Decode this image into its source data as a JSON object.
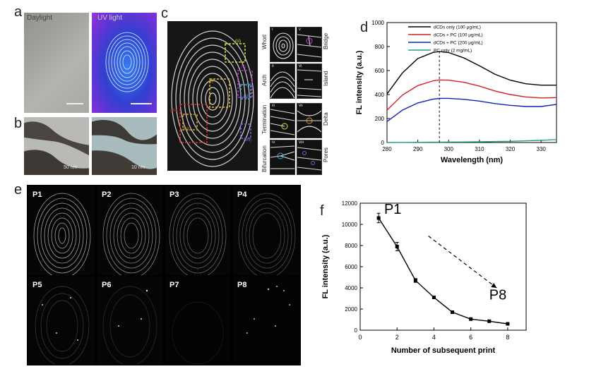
{
  "panels": {
    "a": "a",
    "b": "b",
    "c": "c",
    "d": "d",
    "e": "e",
    "f": "f"
  },
  "panel_a": {
    "left_label": "Daylight",
    "right_label": "UV light"
  },
  "panel_b": {
    "scale_left": "50 nm",
    "scale_right": "10 nm"
  },
  "panel_c": {
    "features_left": [
      "Whorl",
      "Arch",
      "Termination",
      "Bifurcation"
    ],
    "features_right": [
      "Bridge",
      "Island",
      "Delta",
      "Pores"
    ],
    "roman_left": [
      "i",
      "ii",
      "iii",
      "iv"
    ],
    "roman_right": [
      "v",
      "vi",
      "vii",
      "viii"
    ],
    "box_tags": [
      "(iii)",
      "(i)",
      "(ii)",
      "(vii)",
      "(v)",
      "(vi)",
      "(iv)",
      "(viii)"
    ]
  },
  "panel_e": {
    "labels": [
      "P1",
      "P2",
      "P3",
      "P4",
      "P5",
      "P6",
      "P7",
      "P8"
    ]
  },
  "chart_data": [
    {
      "id": "d",
      "type": "line",
      "xlabel": "Wavelength (nm)",
      "ylabel": "FL intensity (a.u.)",
      "xlim": [
        280,
        335
      ],
      "ylim": [
        0,
        1000
      ],
      "xticks": [
        280,
        290,
        300,
        310,
        320,
        330
      ],
      "yticks": [
        0,
        200,
        400,
        600,
        800,
        1000
      ],
      "x": [
        280,
        285,
        290,
        295,
        297,
        300,
        305,
        310,
        315,
        320,
        325,
        330,
        335
      ],
      "series": [
        {
          "name": "dCDs only (100 μg/mL)",
          "color": "#000000",
          "values": [
            405,
            580,
            700,
            752,
            758,
            750,
            705,
            640,
            570,
            520,
            490,
            478,
            478
          ]
        },
        {
          "name": "dCDs + PC (100 μg/mL)",
          "color": "#d42020",
          "values": [
            270,
            395,
            475,
            515,
            522,
            520,
            502,
            470,
            430,
            400,
            380,
            372,
            375
          ]
        },
        {
          "name": "dCDs + PC (200 μg/mL)",
          "color": "#1020c0",
          "values": [
            175,
            270,
            330,
            362,
            368,
            368,
            360,
            345,
            325,
            310,
            300,
            300,
            318
          ]
        },
        {
          "name": "PC only (2 mg/mL)",
          "color": "#20a080",
          "values": [
            0,
            1,
            2,
            3,
            3,
            4,
            5,
            6,
            8,
            10,
            14,
            18,
            25
          ]
        }
      ],
      "vline": 297,
      "legend": "top-center",
      "grid": false
    },
    {
      "id": "f",
      "type": "line",
      "xlabel": "Number of subsequent print",
      "ylabel": "FL intensity (a.u.)",
      "xlim": [
        0,
        9
      ],
      "ylim": [
        0,
        12000
      ],
      "xticks": [
        0,
        2,
        4,
        6,
        8
      ],
      "yticks": [
        0,
        2000,
        4000,
        6000,
        8000,
        10000,
        12000
      ],
      "x": [
        1,
        2,
        3,
        4,
        5,
        6,
        7,
        8
      ],
      "series": [
        {
          "name": "",
          "color": "#000000",
          "values": [
            10600,
            7900,
            4700,
            3100,
            1700,
            1050,
            850,
            600
          ]
        }
      ],
      "errors": [
        450,
        400,
        180,
        120,
        60,
        40,
        30,
        30
      ],
      "annotations": [
        "P1",
        "P8"
      ],
      "grid": false
    }
  ]
}
